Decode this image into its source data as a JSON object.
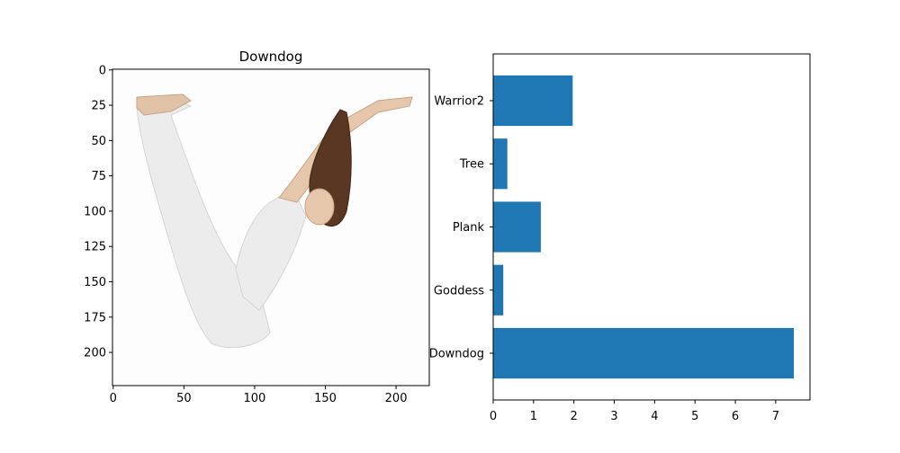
{
  "chart_data": [
    {
      "type": "image",
      "title": "Downdog",
      "xlim": [
        0,
        224
      ],
      "ylim": [
        224,
        0
      ],
      "xticks": [
        0,
        50,
        100,
        150,
        200
      ],
      "yticks": [
        0,
        25,
        50,
        75,
        100,
        125,
        150,
        175,
        200
      ]
    },
    {
      "type": "bar",
      "orientation": "horizontal",
      "categories": [
        "Downdog",
        "Goddess",
        "Plank",
        "Tree",
        "Warrior2"
      ],
      "values": [
        7.45,
        0.25,
        1.18,
        0.35,
        1.97
      ],
      "xlim": [
        0,
        7.85
      ],
      "xticks": [
        0,
        1,
        2,
        3,
        4,
        5,
        6,
        7
      ],
      "color": "#1f77b4"
    }
  ]
}
